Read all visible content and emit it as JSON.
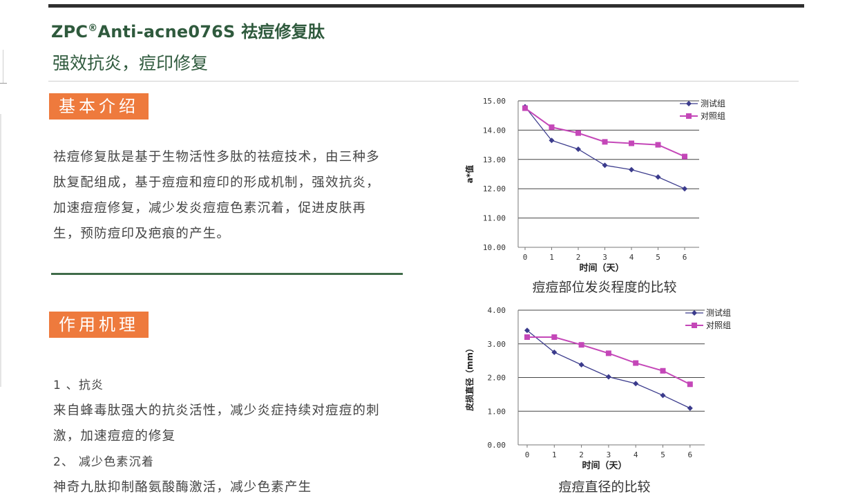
{
  "header": {
    "product_title_brand": "ZPC",
    "registered_mark": "®",
    "product_title_rest": "Anti-acne076S 祛痘修复肽",
    "subtitle": "强效抗炎，痘印修复"
  },
  "intro": {
    "tag": "基本介绍",
    "lines": [
      "祛痘修复肽是基于生物活性多肽的祛痘技术，由三种多",
      "肽复配组成，基于痘痘和痘印的形成机制，强效抗炎，",
      "加速痘痘修复，减少发炎痘痘色素沉着，促进皮肤再",
      "生，预防痘印及疤痕的产生。"
    ]
  },
  "mechanism": {
    "tag": "作用机理",
    "items": [
      {
        "heading": "1 、抗炎",
        "text": "来自蜂毒肽强大的抗炎活性，减少炎症持续对痘痘的刺",
        "text2": "激，加速痘痘的修复"
      },
      {
        "heading": "2、 减少色素沉着",
        "text": "神奇九肽抑制酪氨酸酶激活，减少色素产生",
        "text2": ""
      }
    ]
  },
  "chart_data": [
    {
      "type": "line",
      "title": "",
      "caption": "痘痘部位发炎程度的比较",
      "xlabel": "时间（天）",
      "ylabel": "a*值",
      "x": [
        0,
        1,
        2,
        3,
        4,
        5,
        6
      ],
      "ylim": [
        10,
        15
      ],
      "yticks": [
        "10.00",
        "11.00",
        "12.00",
        "13.00",
        "14.00",
        "15.00"
      ],
      "grid": true,
      "legend": "top-right",
      "series": [
        {
          "name": "测试组",
          "color": "#3b3b8c",
          "marker": "diamond",
          "values": [
            14.8,
            13.65,
            13.35,
            12.8,
            12.65,
            12.4,
            12.0
          ]
        },
        {
          "name": "对照组",
          "color": "#c447b8",
          "marker": "square",
          "values": [
            14.75,
            14.1,
            13.9,
            13.6,
            13.55,
            13.5,
            13.1
          ]
        }
      ]
    },
    {
      "type": "line",
      "title": "",
      "caption": "痘痘直径的比较",
      "xlabel": "时间（天）",
      "ylabel": "皮损直径（mm）",
      "x": [
        0,
        1,
        2,
        3,
        4,
        5,
        6
      ],
      "ylim": [
        0,
        4
      ],
      "yticks": [
        "0.00",
        "1.00",
        "2.00",
        "3.00",
        "4.00"
      ],
      "grid": true,
      "legend": "top-right",
      "series": [
        {
          "name": "测试组",
          "color": "#3b3b8c",
          "marker": "diamond",
          "values": [
            3.4,
            2.75,
            2.38,
            2.02,
            1.82,
            1.47,
            1.09
          ]
        },
        {
          "name": "对照组",
          "color": "#c447b8",
          "marker": "square",
          "values": [
            3.2,
            3.2,
            2.97,
            2.72,
            2.43,
            2.2,
            1.8
          ]
        }
      ]
    }
  ]
}
